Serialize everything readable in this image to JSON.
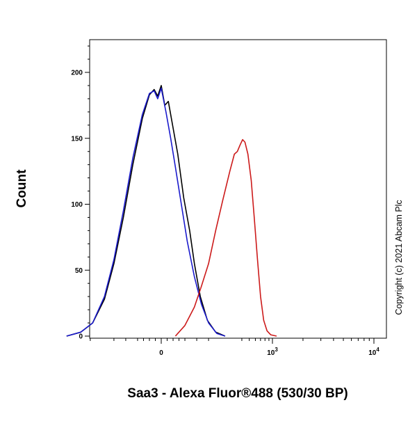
{
  "chart_data": {
    "type": "line",
    "title": "",
    "xlabel": "Saa3 - Alexa Fluor®488 (530/30 BP)",
    "ylabel": "Count",
    "x_scale": "biexponential",
    "ylim": [
      0,
      225
    ],
    "y_ticks": [
      {
        "value": 0,
        "label": "0"
      },
      {
        "value": 50,
        "label": "50"
      },
      {
        "value": 100,
        "label": "100"
      },
      {
        "value": 150,
        "label": "150"
      },
      {
        "value": 200,
        "label": "200"
      }
    ],
    "x_ticks": [
      {
        "value": 0,
        "label": "0",
        "sup": ""
      },
      {
        "value": 1000,
        "label": "10",
        "sup": "3"
      },
      {
        "value": 10000,
        "label": "10",
        "sup": "4"
      }
    ],
    "grid": false,
    "legend": "none",
    "series": [
      {
        "color": "#000000",
        "points": [
          [
            -400,
            0
          ],
          [
            -340,
            3
          ],
          [
            -290,
            10
          ],
          [
            -240,
            28
          ],
          [
            -200,
            55
          ],
          [
            -160,
            90
          ],
          [
            -120,
            130
          ],
          [
            -80,
            165
          ],
          [
            -50,
            183
          ],
          [
            -30,
            187
          ],
          [
            -15,
            182
          ],
          [
            0,
            190
          ],
          [
            15,
            175
          ],
          [
            30,
            178
          ],
          [
            50,
            158
          ],
          [
            70,
            138
          ],
          [
            95,
            105
          ],
          [
            120,
            80
          ],
          [
            140,
            55
          ],
          [
            165,
            30
          ],
          [
            195,
            12
          ],
          [
            230,
            3
          ],
          [
            270,
            0
          ]
        ]
      },
      {
        "color": "#1a1acc",
        "points": [
          [
            -400,
            0
          ],
          [
            -340,
            3
          ],
          [
            -290,
            10
          ],
          [
            -240,
            30
          ],
          [
            -200,
            58
          ],
          [
            -160,
            95
          ],
          [
            -120,
            135
          ],
          [
            -80,
            168
          ],
          [
            -50,
            184
          ],
          [
            -30,
            186
          ],
          [
            -15,
            180
          ],
          [
            0,
            188
          ],
          [
            20,
            170
          ],
          [
            40,
            150
          ],
          [
            60,
            128
          ],
          [
            85,
            100
          ],
          [
            110,
            72
          ],
          [
            140,
            45
          ],
          [
            170,
            24
          ],
          [
            200,
            10
          ],
          [
            235,
            2
          ],
          [
            270,
            0
          ]
        ]
      },
      {
        "color": "#cc1a1a",
        "points": [
          [
            60,
            0
          ],
          [
            100,
            8
          ],
          [
            140,
            22
          ],
          [
            170,
            38
          ],
          [
            200,
            55
          ],
          [
            230,
            80
          ],
          [
            260,
            103
          ],
          [
            290,
            125
          ],
          [
            320,
            138
          ],
          [
            350,
            140
          ],
          [
            380,
            145
          ],
          [
            410,
            149
          ],
          [
            440,
            147
          ],
          [
            480,
            138
          ],
          [
            530,
            118
          ],
          [
            580,
            90
          ],
          [
            640,
            58
          ],
          [
            700,
            30
          ],
          [
            770,
            12
          ],
          [
            850,
            4
          ],
          [
            950,
            1
          ],
          [
            1100,
            0
          ]
        ]
      }
    ]
  },
  "copyright": "Copyright (c) 2021 Abcam Plc"
}
